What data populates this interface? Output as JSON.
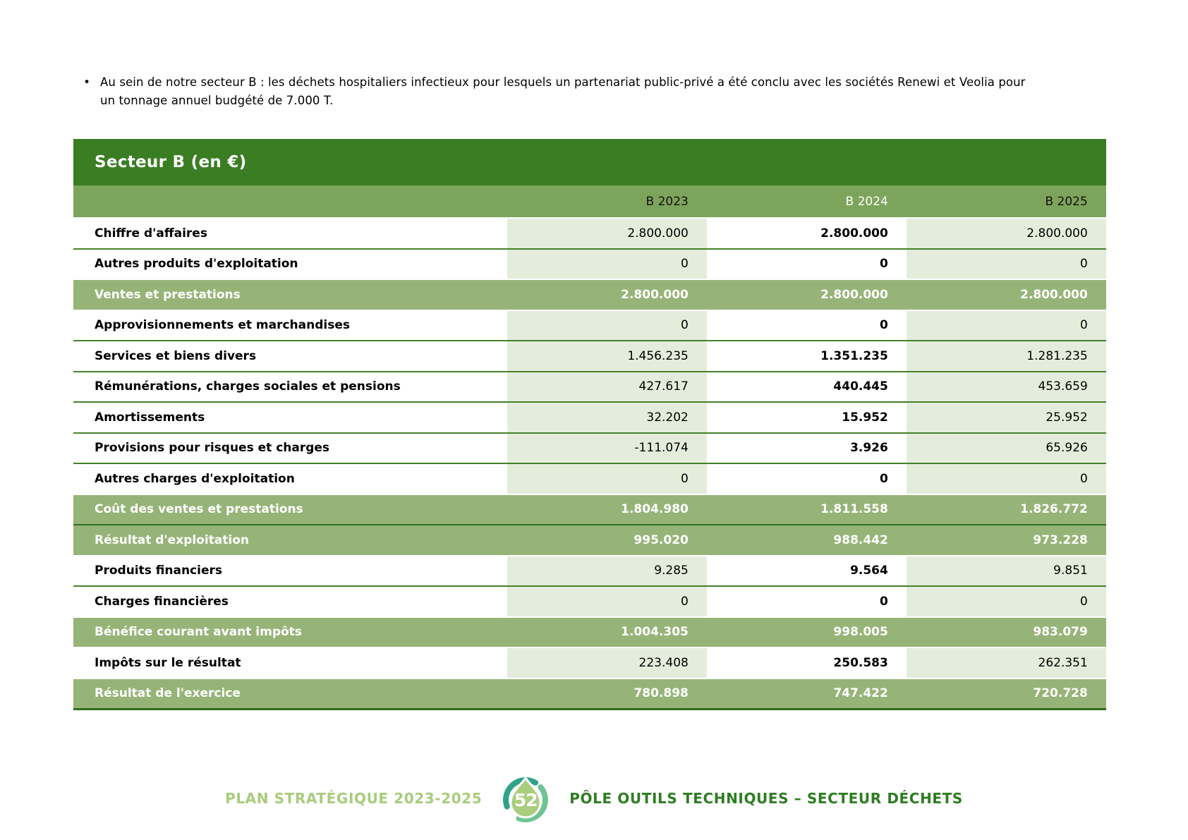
{
  "intro": {
    "bullet_glyph": "•",
    "bullet_text": "Au sein de notre secteur B : les déchets hospitaliers infectieux pour lesquels un partenariat public-privé a été conclu avec les sociétés Renewi et Veolia pour un tonnage annuel budgété de 7.000 T."
  },
  "table": {
    "title": "Secteur B (en €)",
    "columns": [
      "B 2023",
      "B 2024",
      "B 2025"
    ],
    "rows": [
      {
        "label": "Chiffre d'affaires",
        "values": [
          "2.800.000",
          "2.800.000",
          "2.800.000"
        ],
        "type": "normal"
      },
      {
        "label": "Autres produits d'exploitation",
        "values": [
          "0",
          "0",
          "0"
        ],
        "type": "normal"
      },
      {
        "label": "Ventes et prestations",
        "values": [
          "2.800.000",
          "2.800.000",
          "2.800.000"
        ],
        "type": "total"
      },
      {
        "label": "Approvisionnements et marchandises",
        "values": [
          "0",
          "0",
          "0"
        ],
        "type": "normal"
      },
      {
        "label": "Services et biens divers",
        "values": [
          "1.456.235",
          "1.351.235",
          "1.281.235"
        ],
        "type": "normal"
      },
      {
        "label": "Rémunérations, charges sociales et pensions",
        "values": [
          "427.617",
          "440.445",
          "453.659"
        ],
        "type": "normal"
      },
      {
        "label": "Amortissements",
        "values": [
          "32.202",
          "15.952",
          "25.952"
        ],
        "type": "normal"
      },
      {
        "label": "Provisions pour risques et charges",
        "values": [
          "-111.074",
          "3.926",
          "65.926"
        ],
        "type": "normal"
      },
      {
        "label": "Autres charges d'exploitation",
        "values": [
          "0",
          "0",
          "0"
        ],
        "type": "normal"
      },
      {
        "label": "Coût des ventes et prestations",
        "values": [
          "1.804.980",
          "1.811.558",
          "1.826.772"
        ],
        "type": "total"
      },
      {
        "label": "Résultat d'exploitation",
        "values": [
          "995.020",
          "988.442",
          "973.228"
        ],
        "type": "total"
      },
      {
        "label": "Produits financiers",
        "values": [
          "9.285",
          "9.564",
          "9.851"
        ],
        "type": "normal"
      },
      {
        "label": "Charges financières",
        "values": [
          "0",
          "0",
          "0"
        ],
        "type": "normal"
      },
      {
        "label": "Bénéfice courant avant impôts",
        "values": [
          "1.004.305",
          "998.005",
          "983.079"
        ],
        "type": "total"
      },
      {
        "label": "Impôts sur le résultat",
        "values": [
          "223.408",
          "250.583",
          "262.351"
        ],
        "type": "normal"
      },
      {
        "label": "Résultat de l'exercice",
        "values": [
          "780.898",
          "747.422",
          "720.728"
        ],
        "type": "total"
      }
    ]
  },
  "footer": {
    "left_text": "PLAN STRATÉGIQUE 2023-2025",
    "page_number": "52",
    "right_text": "PÔLE OUTILS TECHNIQUES – SECTEUR DÉCHETS",
    "badge_icon": "recycle-drop-icon"
  },
  "colors": {
    "title_bg": "#3A7D23",
    "header_bg": "#7DA45B",
    "total_bg": "#97B478",
    "light_cell": "#E4EDDB",
    "line": "#44812A",
    "line_dark": "#2F6E1C",
    "footer_light": "#A8CC7C",
    "footer_dark": "#2E7D22",
    "badge_teal": "#2EA389",
    "badge_green": "#6FC493",
    "badge_drop": "#A9CE7E"
  }
}
